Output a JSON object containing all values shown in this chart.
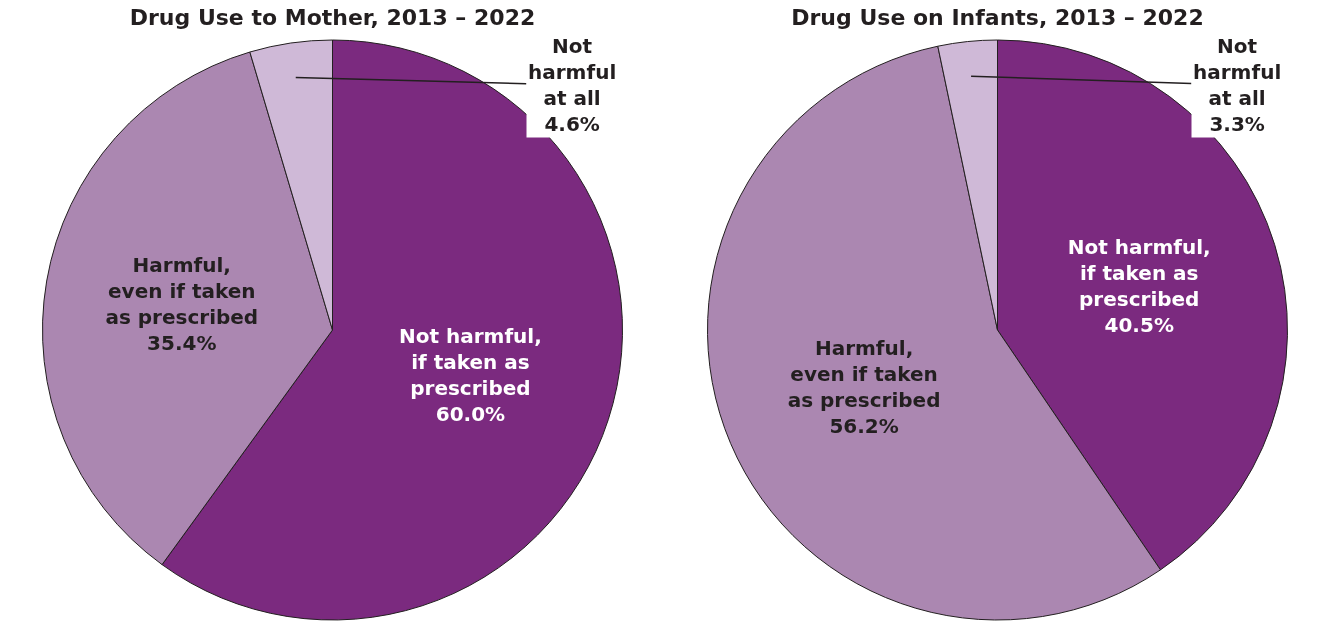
{
  "chart_data": [
    {
      "type": "pie",
      "title": "Drug Use to Mother, 2013 – 2022",
      "categories": [
        "Not harmful,\nif taken as\nprescribed",
        "Harmful,\neven if taken\nas prescribed",
        "Not\nharmful\nat all"
      ],
      "values": [
        60.0,
        35.4,
        4.6
      ],
      "value_labels": [
        "60.0%",
        "35.4%",
        "4.6%"
      ],
      "colors": [
        "#7b2a7f",
        "#ab87b1",
        "#cfb9d7"
      ]
    },
    {
      "type": "pie",
      "title": "Drug Use on Infants, 2013 – 2022",
      "categories": [
        "Not harmful,\nif taken as\nprescribed",
        "Harmful,\neven if taken\nas prescribed",
        "Not\nharmful\nat all"
      ],
      "values": [
        40.5,
        56.2,
        3.3
      ],
      "value_labels": [
        "40.5%",
        "56.2%",
        "3.3%"
      ],
      "colors": [
        "#7b2a7f",
        "#ab87b1",
        "#cfb9d7"
      ]
    }
  ]
}
